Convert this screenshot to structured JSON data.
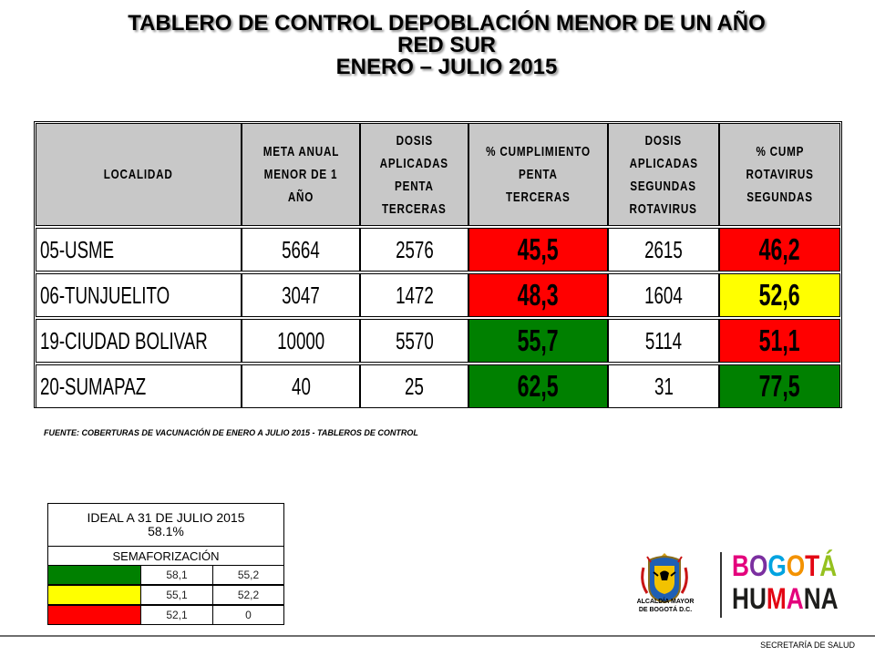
{
  "title": {
    "line1": "TABLERO DE CONTROL DEPOBLACIÓN  MENOR DE UN AÑO",
    "line2": "RED SUR",
    "line3": "ENERO – JULIO 2015"
  },
  "table": {
    "headers": [
      [
        "LOCALIDAD"
      ],
      [
        "META ANUAL",
        "MENOR DE 1 AÑO"
      ],
      [
        "DOSIS",
        "APLICADAS",
        "PENTA",
        "TERCERAS"
      ],
      [
        "% CUMPLIMIENTO",
        "PENTA",
        "TERCERAS"
      ],
      [
        "DOSIS",
        "APLICADAS",
        "SEGUNDAS",
        "ROTAVIRUS"
      ],
      [
        "% CUMP",
        "ROTAVIRUS",
        "SEGUNDAS"
      ]
    ],
    "rows": [
      {
        "localidad": "05-USME",
        "meta": "5664",
        "dosis_penta": "2576",
        "pct_penta": "45,5",
        "dosis_rota": "2615",
        "pct_rota": "46,2",
        "color_penta": "red",
        "color_rota": "red"
      },
      {
        "localidad": "06-TUNJUELITO",
        "meta": "3047",
        "dosis_penta": "1472",
        "pct_penta": "48,3",
        "dosis_rota": "1604",
        "pct_rota": "52,6",
        "color_penta": "red",
        "color_rota": "yellow"
      },
      {
        "localidad": "19-CIUDAD BOLIVAR",
        "meta": "10000",
        "dosis_penta": "5570",
        "pct_penta": "55,7",
        "dosis_rota": "5114",
        "pct_rota": "51,1",
        "color_penta": "green",
        "color_rota": "red"
      },
      {
        "localidad": "20-SUMAPAZ",
        "meta": "40",
        "dosis_penta": "25",
        "pct_penta": "62,5",
        "dosis_rota": "31",
        "pct_rota": "77,5",
        "color_penta": "green",
        "color_rota": "green"
      }
    ]
  },
  "source": "FUENTE: COBERTURAS DE VACUNACIÓN DE ENERO A JULIO 2015 -  TABLEROS DE CONTROL",
  "ideal": {
    "title_line1": "IDEAL A 31 DE JULIO 2015",
    "title_line2": "58.1%",
    "semaforo_label": "SEMAFORIZACIÓN",
    "rows": [
      {
        "color": "green",
        "max": "58,1",
        "min": "55,2"
      },
      {
        "color": "yellow",
        "max": "55,1",
        "min": "52,2"
      },
      {
        "color": "red",
        "max": "52,1",
        "min": "0"
      }
    ]
  },
  "logos": {
    "alcaldia_line1": "ALCALDÍA MAYOR",
    "alcaldia_line2": "DE BOGOTÁ D.C.",
    "bogota_letters": [
      "B",
      "O",
      "G",
      "O",
      "T",
      "Á"
    ],
    "humana_letters": [
      "H",
      "U",
      "M",
      "A",
      "N",
      "A"
    ]
  },
  "footer": "SECRETARÍA DE SALUD",
  "colors": {
    "red": "#ff0000",
    "green": "#008000",
    "yellow": "#ffff00",
    "header_gray": "#c8c8c8"
  }
}
